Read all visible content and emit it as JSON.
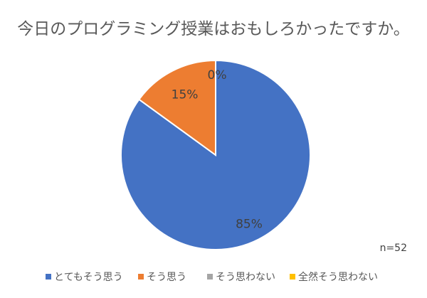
{
  "chart_data": {
    "type": "pie",
    "title": "今日のプログラミング授業はおもしろかったですか。",
    "categories": [
      "とてもそう思う",
      "そう思う",
      "そう思わない",
      "全然そう思わない"
    ],
    "values": [
      85,
      15,
      0,
      0
    ],
    "data_labels": [
      "85%",
      "15%",
      "0%",
      ""
    ],
    "colors": [
      "#4472C4",
      "#ED7D31",
      "#A5A5A5",
      "#FFC000"
    ],
    "annotation": "n=52",
    "legend_position": "bottom"
  }
}
